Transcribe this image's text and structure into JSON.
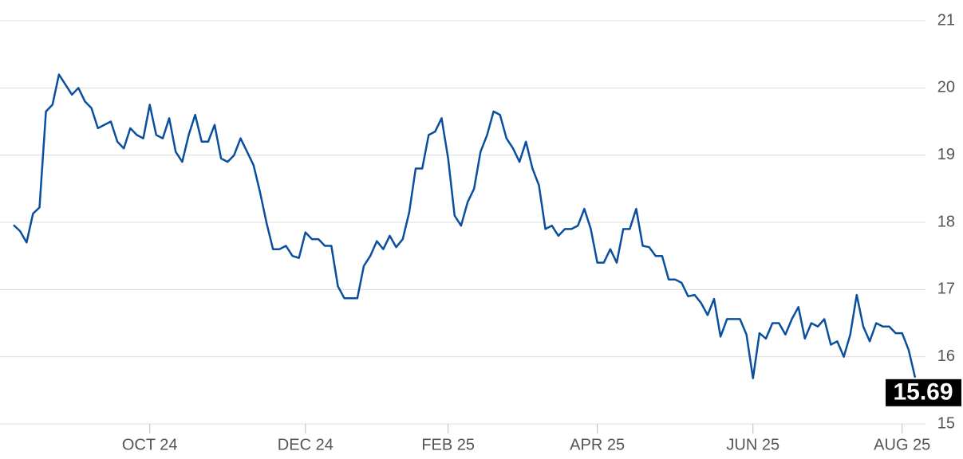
{
  "chart_data": {
    "type": "line",
    "categories": [
      null,
      null,
      null,
      null,
      null,
      null,
      null,
      null,
      null,
      null,
      null,
      null,
      null,
      null,
      null,
      null,
      null,
      null,
      null,
      null,
      null,
      "OCT 24",
      null,
      null,
      null,
      null,
      null,
      null,
      null,
      null,
      null,
      null,
      null,
      null,
      null,
      null,
      null,
      null,
      null,
      null,
      null,
      null,
      null,
      null,
      null,
      "DEC 24",
      null,
      null,
      null,
      null,
      null,
      null,
      null,
      null,
      null,
      null,
      null,
      null,
      null,
      null,
      null,
      null,
      null,
      null,
      null,
      null,
      null,
      "FEB 25",
      null,
      null,
      null,
      null,
      null,
      null,
      null,
      null,
      null,
      null,
      null,
      null,
      null,
      null,
      null,
      null,
      null,
      null,
      null,
      null,
      null,
      null,
      "APR 25",
      null,
      null,
      null,
      null,
      null,
      null,
      null,
      null,
      null,
      null,
      null,
      null,
      null,
      null,
      null,
      null,
      null,
      null,
      null,
      null,
      null,
      null,
      null,
      "JUN 25",
      null,
      null,
      null,
      null,
      null,
      null,
      null,
      null,
      null,
      null,
      null,
      null,
      null,
      null,
      null,
      null,
      null,
      null,
      null,
      null,
      null,
      null,
      "AUG 25",
      null,
      null
    ],
    "series": [
      {
        "color": "#0a4f9e",
        "values": [
          17.96,
          17.87,
          17.7,
          18.13,
          18.22,
          19.65,
          19.75,
          20.2,
          20.05,
          19.9,
          20.0,
          19.8,
          19.7,
          19.4,
          19.45,
          19.5,
          19.2,
          19.1,
          19.4,
          19.3,
          19.25,
          19.75,
          19.3,
          19.25,
          19.55,
          19.05,
          18.9,
          19.3,
          19.6,
          19.2,
          19.2,
          19.45,
          18.95,
          18.9,
          19.0,
          19.25,
          19.05,
          18.85,
          18.45,
          17.99,
          17.6,
          17.6,
          17.65,
          17.5,
          17.47,
          17.85,
          17.75,
          17.75,
          17.65,
          17.65,
          17.05,
          16.87,
          16.87,
          16.87,
          17.35,
          17.5,
          17.72,
          17.6,
          17.8,
          17.63,
          17.75,
          18.15,
          18.8,
          18.8,
          19.3,
          19.35,
          19.55,
          18.95,
          18.1,
          17.95,
          18.3,
          18.5,
          19.05,
          19.3,
          19.65,
          19.6,
          19.25,
          19.1,
          18.9,
          19.2,
          18.8,
          18.55,
          17.9,
          17.95,
          17.8,
          17.9,
          17.9,
          17.95,
          18.2,
          17.9,
          17.4,
          17.4,
          17.6,
          17.4,
          17.9,
          17.9,
          18.2,
          17.65,
          17.63,
          17.5,
          17.5,
          17.15,
          17.15,
          17.1,
          16.9,
          16.92,
          16.8,
          16.62,
          16.86,
          16.3,
          16.56,
          16.56,
          16.56,
          16.33,
          15.68,
          16.35,
          16.27,
          16.5,
          16.5,
          16.33,
          16.56,
          16.74,
          16.27,
          16.5,
          16.45,
          16.56,
          16.18,
          16.23,
          16.0,
          16.33,
          16.92,
          16.45,
          16.23,
          16.5,
          16.45,
          16.45,
          16.35,
          16.35,
          16.1,
          15.69
        ]
      }
    ],
    "ylim": [
      15,
      21
    ],
    "yticks": [
      15,
      16,
      17,
      18,
      19,
      20,
      21
    ],
    "grid": true
  }
}
